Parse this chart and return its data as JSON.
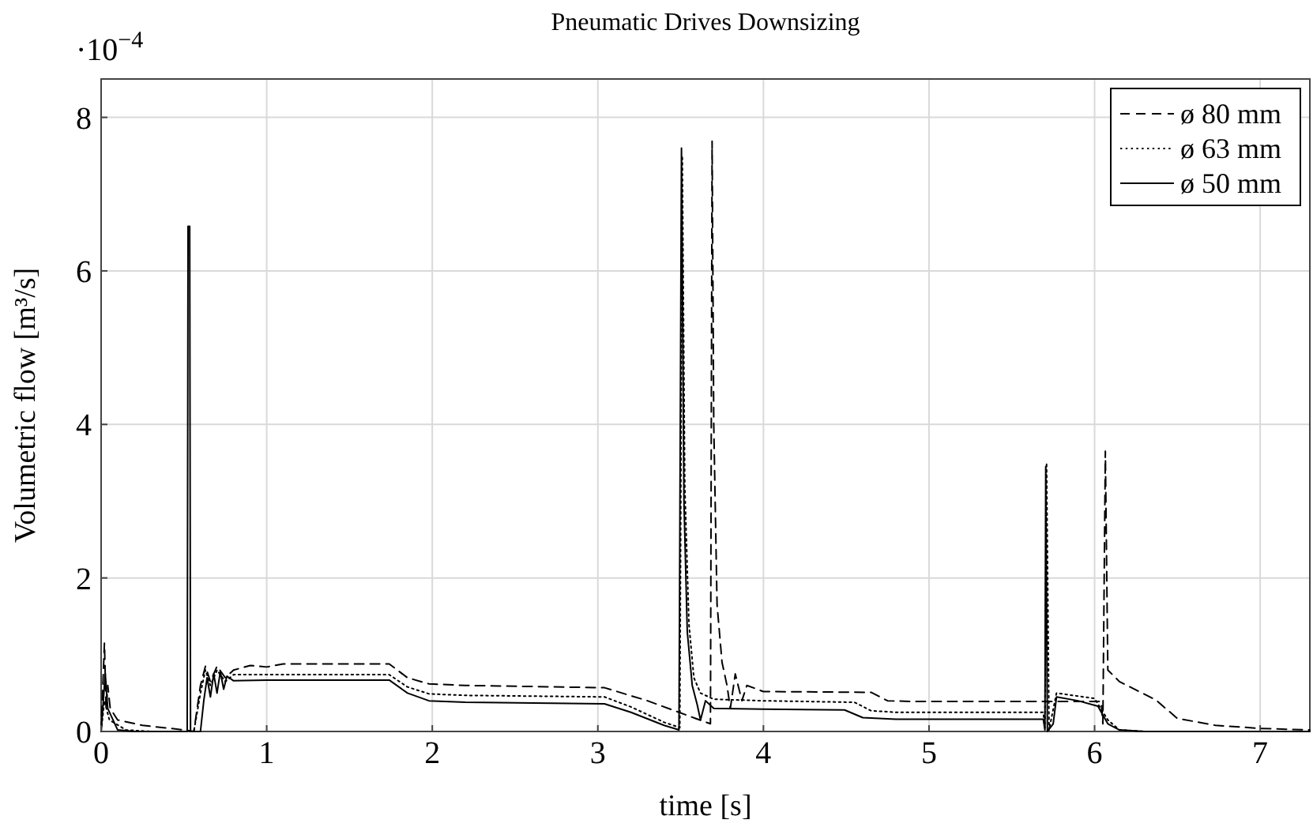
{
  "chart_data": {
    "type": "line",
    "title": "Pneumatic Drives Downsizing",
    "xlabel": "time [s]",
    "ylabel": "Volumetric flow [m³/s]",
    "annotations": [
      "·10$^{−4}$"
    ],
    "xlim": [
      0,
      7.3
    ],
    "xticks": [
      0,
      1,
      2,
      3,
      4,
      5,
      6,
      7
    ],
    "ylim": [
      0,
      8.5
    ],
    "yticks": [
      0,
      2,
      4,
      6,
      8
    ],
    "grid": true,
    "legend": "top right",
    "marker": "none",
    "series": [
      {
        "name": "ø 80 mm",
        "color": "#000000",
        "line_style": "dashed",
        "x": [
          0,
          0.02,
          0.03,
          0.04,
          0.055,
          0.1,
          0.25,
          0.5,
          0.56,
          0.6,
          0.63,
          0.66,
          0.7,
          0.75,
          0.8,
          0.9,
          1.0,
          1.1,
          1.74,
          1.85,
          1.98,
          2.2,
          3.04,
          3.3,
          3.59,
          3.68,
          3.69,
          3.7,
          3.72,
          3.75,
          3.78,
          3.8,
          3.83,
          3.87,
          3.9,
          4.0,
          4.65,
          4.75,
          4.9,
          6.04,
          6.05,
          6.065,
          6.08,
          6.15,
          6.37,
          6.5,
          6.73,
          7.0,
          7.3
        ],
        "values": [
          0,
          1.15,
          0.3,
          0.6,
          0.3,
          0.15,
          0.08,
          0.02,
          0,
          0.6,
          0.85,
          0.65,
          0.85,
          0.7,
          0.8,
          0.86,
          0.84,
          0.88,
          0.88,
          0.7,
          0.62,
          0.6,
          0.57,
          0.4,
          0.17,
          0.1,
          7.69,
          4.0,
          1.65,
          0.9,
          0.6,
          0.3,
          0.75,
          0.4,
          0.6,
          0.52,
          0.51,
          0.4,
          0.39,
          0.39,
          0.1,
          3.65,
          0.8,
          0.65,
          0.41,
          0.17,
          0.08,
          0.04,
          0.02
        ]
      },
      {
        "name": "ø 63 mm",
        "color": "#000000",
        "line_style": "dotted",
        "x": [
          0,
          0.02,
          0.05,
          0.15,
          0.3,
          0.56,
          0.6,
          0.63,
          0.66,
          0.7,
          0.75,
          0.8,
          1.74,
          1.85,
          1.98,
          2.2,
          3.04,
          3.2,
          3.4,
          3.495,
          3.51,
          3.525,
          3.55,
          3.58,
          3.62,
          3.7,
          4.0,
          4.55,
          4.65,
          4.8,
          5.69,
          5.7,
          5.71,
          5.725,
          5.77,
          6.0,
          6.08,
          6.15,
          6.3,
          7.3
        ],
        "values": [
          0,
          0.4,
          0.15,
          0.02,
          0,
          0,
          0.5,
          0.8,
          0.6,
          0.8,
          0.65,
          0.74,
          0.74,
          0.58,
          0.49,
          0.47,
          0.45,
          0.32,
          0.12,
          0.05,
          7.5,
          3.2,
          1.4,
          0.7,
          0.5,
          0.42,
          0.4,
          0.38,
          0.27,
          0.25,
          0.25,
          0.05,
          3.5,
          0.02,
          0.5,
          0.43,
          0.15,
          0.02,
          0,
          0
        ]
      },
      {
        "name": "ø 50 mm",
        "color": "#000000",
        "line_style": "solid",
        "x": [
          0,
          0.01,
          0.025,
          0.04,
          0.1,
          0.2,
          0.52,
          0.525,
          0.535,
          0.54,
          0.6,
          0.62,
          0.64,
          0.66,
          0.68,
          0.7,
          0.72,
          0.74,
          0.76,
          0.8,
          1.0,
          1.74,
          1.85,
          1.98,
          2.2,
          3.04,
          3.2,
          3.4,
          3.49,
          3.505,
          3.52,
          3.54,
          3.57,
          3.6,
          3.62,
          3.65,
          3.7,
          4.0,
          4.49,
          4.6,
          4.8,
          5.69,
          5.7,
          5.705,
          5.715,
          5.75,
          5.77,
          5.9,
          6.02,
          6.08,
          6.15,
          6.3,
          7.3
        ],
        "values": [
          0,
          0.3,
          0.75,
          0.3,
          0.02,
          0,
          0,
          6.58,
          6.58,
          0,
          0,
          0.4,
          0.7,
          0.45,
          0.75,
          0.5,
          0.78,
          0.55,
          0.72,
          0.66,
          0.67,
          0.67,
          0.5,
          0.4,
          0.38,
          0.36,
          0.25,
          0.08,
          0.02,
          7.6,
          3.0,
          1.3,
          0.6,
          0.35,
          0.15,
          0.4,
          0.3,
          0.29,
          0.28,
          0.18,
          0.16,
          0.16,
          0.02,
          3.45,
          0,
          0.1,
          0.45,
          0.4,
          0.33,
          0.1,
          0.02,
          0,
          0
        ]
      }
    ]
  }
}
